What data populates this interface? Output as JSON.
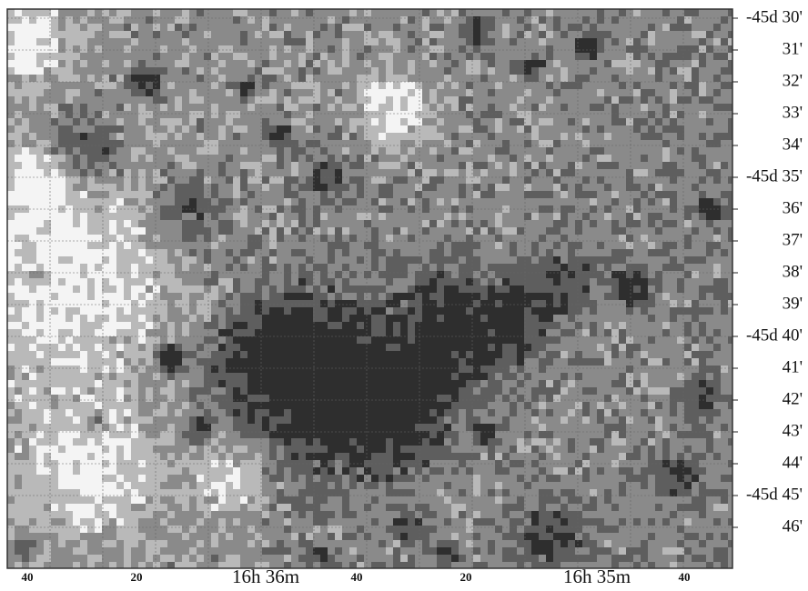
{
  "image": {
    "dec_labels": [
      "-45d 30'",
      "31'",
      "32'",
      "33'",
      "34'",
      "-45d 35'",
      "36'",
      "37'",
      "38'",
      "39'",
      "-45d 40'",
      "41'",
      "42'",
      "43'",
      "44'",
      "-45d 45'",
      "46'"
    ],
    "ra_labels": [
      "40",
      "20",
      "16h 36m",
      "40",
      "20",
      "16h 35m",
      "40"
    ]
  }
}
